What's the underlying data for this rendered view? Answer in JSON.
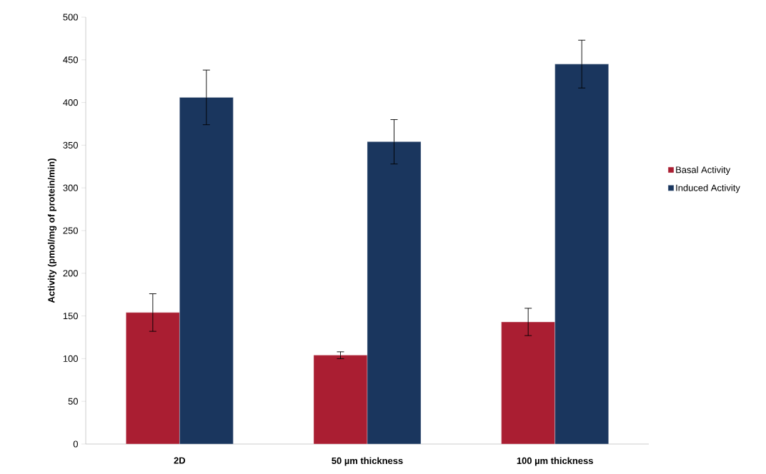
{
  "chart_data": {
    "type": "bar",
    "ylabel": "Activity (pmol/mg of protein/min)",
    "categories": [
      "2D",
      "50 µm thickness",
      "100 µm thickness"
    ],
    "series": [
      {
        "name": "Basal Activity",
        "color": "#aa1e32",
        "values": [
          154,
          104,
          143
        ],
        "errors": [
          22,
          4,
          16
        ]
      },
      {
        "name": "Induced Activity",
        "color": "#1a365e",
        "values": [
          406,
          354,
          445
        ],
        "errors": [
          32,
          26,
          28
        ]
      }
    ],
    "ylim": [
      0,
      500
    ],
    "yticks": [
      0,
      50,
      100,
      150,
      200,
      250,
      300,
      350,
      400,
      450,
      500
    ],
    "grid": false,
    "legend": "right"
  }
}
